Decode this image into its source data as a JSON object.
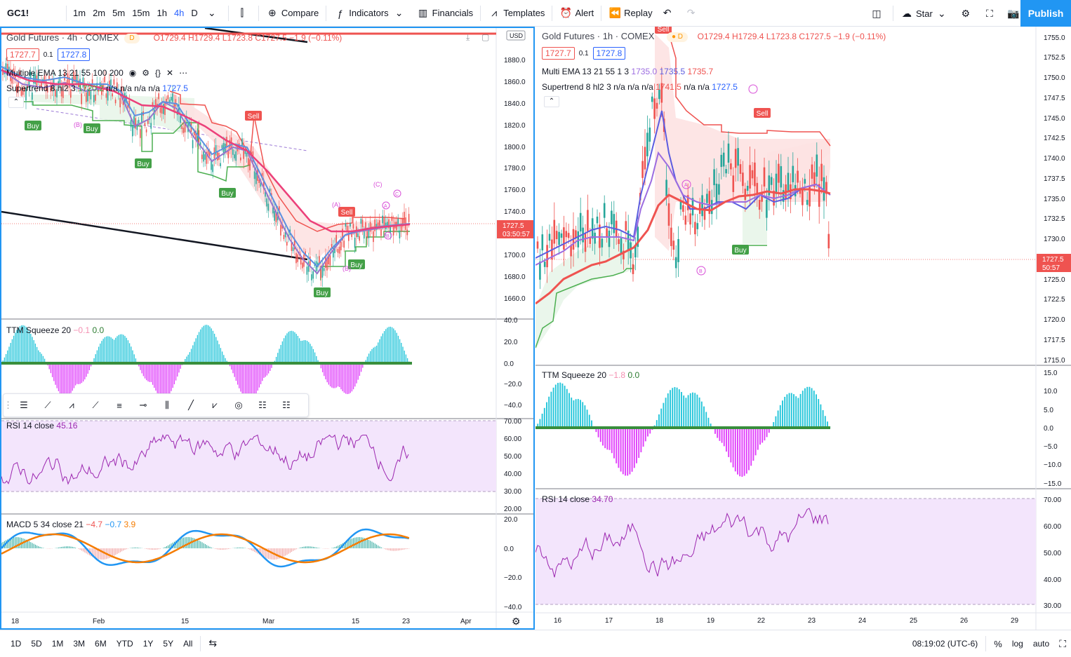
{
  "toolbar": {
    "symbol": "GC1!",
    "timeframes": [
      "1m",
      "2m",
      "5m",
      "15m",
      "1h",
      "4h",
      "D"
    ],
    "active_timeframe": "4h",
    "compare": "Compare",
    "indicators": "Indicators",
    "financials": "Financials",
    "templates": "Templates",
    "alert": "Alert",
    "replay": "Replay",
    "star": "Star",
    "publish": "Publish"
  },
  "left": {
    "title": "Gold Futures · 4h · COMEX",
    "ohlc": "O1729.4 H1729.4 L1723.8 C1727.5 −1.9 (−0.11%)",
    "bid": "1727.7",
    "spread": "0.1",
    "ask": "1727.8",
    "ema_legend": "Multiple EMA 13 21 55 100 200",
    "supertrend": "Supertrend 8 hl2 3",
    "supertrend_v1": "1720.2",
    "supertrend_na": "n/a n/a n/a n/a",
    "supertrend_v2": "1727.5",
    "currency": "USD",
    "price_tag": "1727.5",
    "countdown": "03:50:57",
    "price_axis": [
      "1880.0",
      "1860.0",
      "1840.0",
      "1820.0",
      "1800.0",
      "1780.0",
      "1760.0",
      "1740.0",
      "1700.0",
      "1680.0",
      "1660.0"
    ],
    "ttm_label": "TTM Squeeze 20",
    "ttm_v1": "−0.1",
    "ttm_v2": "0.0",
    "ttm_axis": [
      "40.0",
      "20.0",
      "0.0",
      "−20.0",
      "−40.0"
    ],
    "rsi_label": "RSI 14 close",
    "rsi_value": "45.16",
    "rsi_axis": [
      "70.00",
      "60.00",
      "50.00",
      "40.00",
      "30.00",
      "20.00"
    ],
    "macd_label": "MACD 5 34 close 21",
    "macd_v1": "−4.7",
    "macd_v2": "−0.7",
    "macd_v3": "3.9",
    "macd_axis": [
      "20.0",
      "0.0",
      "−20.0",
      "−40.0"
    ],
    "time_axis": [
      "18",
      "Feb",
      "15",
      "Mar",
      "15",
      "23",
      "Apr"
    ],
    "signals": [
      "Buy",
      "Buy",
      "Buy",
      "Buy",
      "Sell",
      "Sell",
      "Buy",
      "Buy"
    ]
  },
  "right": {
    "title": "Gold Futures · 1h · COMEX",
    "ohlc": "O1729.4 H1729.4 L1723.8 C1727.5 −1.9 (−0.11%)",
    "bid": "1727.7",
    "spread": "0.1",
    "ask": "1727.8",
    "ema_legend": "Multi EMA 13 21 55 1 3",
    "ema_v1": "1735.0",
    "ema_v2": "1735.5",
    "ema_v3": "1735.7",
    "supertrend": "Supertrend 8 hl2 3",
    "supertrend_na": "n/a n/a n/a",
    "supertrend_v1": "1741.5",
    "supertrend_na2": "n/a n/a",
    "supertrend_v2": "1727.5",
    "price_tag": "1727.5",
    "countdown": "50:57",
    "price_axis": [
      "1755.0",
      "1752.5",
      "1750.0",
      "1747.5",
      "1745.0",
      "1742.5",
      "1740.0",
      "1737.5",
      "1735.0",
      "1732.5",
      "1730.0",
      "1725.0",
      "1722.5",
      "1720.0",
      "1717.5",
      "1715.0"
    ],
    "ttm_label": "TTM Squeeze 20",
    "ttm_v1": "−1.8",
    "ttm_v2": "0.0",
    "ttm_axis": [
      "15.0",
      "10.0",
      "5.0",
      "0.0",
      "−5.0",
      "−10.0",
      "−15.0"
    ],
    "rsi_label": "RSI 14 close",
    "rsi_value": "34.70",
    "rsi_axis": [
      "70.00",
      "60.00",
      "50.00",
      "40.00",
      "30.00"
    ],
    "time_axis": [
      "16",
      "17",
      "18",
      "19",
      "22",
      "23",
      "24",
      "25",
      "26",
      "29"
    ],
    "signals": [
      "Sell",
      "Sell",
      "Buy"
    ]
  },
  "bottombar": {
    "ranges": [
      "1D",
      "5D",
      "1M",
      "3M",
      "6M",
      "YTD",
      "1Y",
      "5Y",
      "All"
    ],
    "clock": "08:19:02 (UTC-6)",
    "percent": "%",
    "log": "log",
    "auto": "auto"
  },
  "colors": {
    "up": "#26a69a",
    "down": "#ef5350",
    "accent": "#2196f3"
  }
}
